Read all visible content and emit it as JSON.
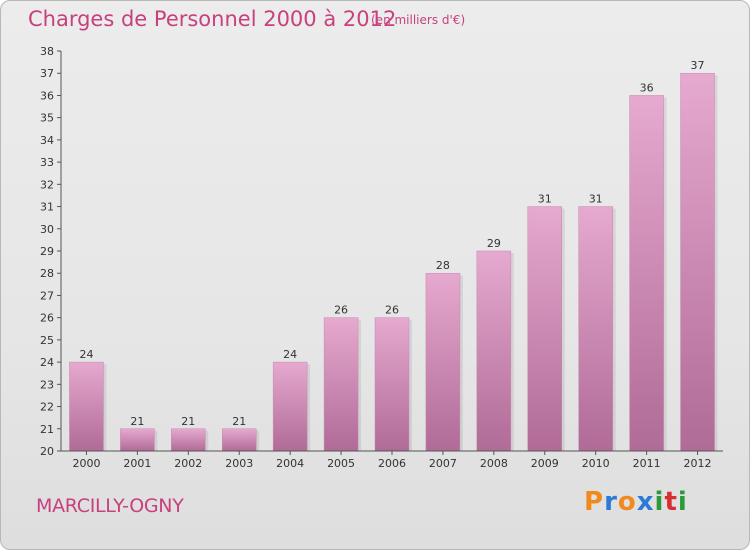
{
  "header": {
    "title": "Charges de Personnel 2000 à 2012",
    "subtitle": "(en milliers d'€)"
  },
  "footer": {
    "commune": "MARCILLY-OGNY",
    "logo": "Proxiti"
  },
  "colors": {
    "title": "#c8407e",
    "bar_top": "#e6a9cf",
    "bar_bottom": "#b06b97",
    "axis": "#555555",
    "logo_letters": [
      "#f08a1c",
      "#2b7bd6",
      "#f08a1c",
      "#2b7bd6",
      "#2b9a3a",
      "#d62f2f",
      "#2b9a3a"
    ]
  },
  "chart_data": {
    "type": "bar",
    "categories": [
      "2000",
      "2001",
      "2002",
      "2003",
      "2004",
      "2005",
      "2006",
      "2007",
      "2008",
      "2009",
      "2010",
      "2011",
      "2012"
    ],
    "values": [
      24,
      21,
      21,
      21,
      24,
      26,
      26,
      28,
      29,
      31,
      31,
      36,
      37
    ],
    "ylim": [
      20,
      38
    ],
    "yticks": [
      20,
      21,
      22,
      23,
      24,
      25,
      26,
      27,
      28,
      29,
      30,
      31,
      32,
      33,
      34,
      35,
      36,
      37,
      38
    ],
    "grid": false,
    "data_labels": true
  }
}
